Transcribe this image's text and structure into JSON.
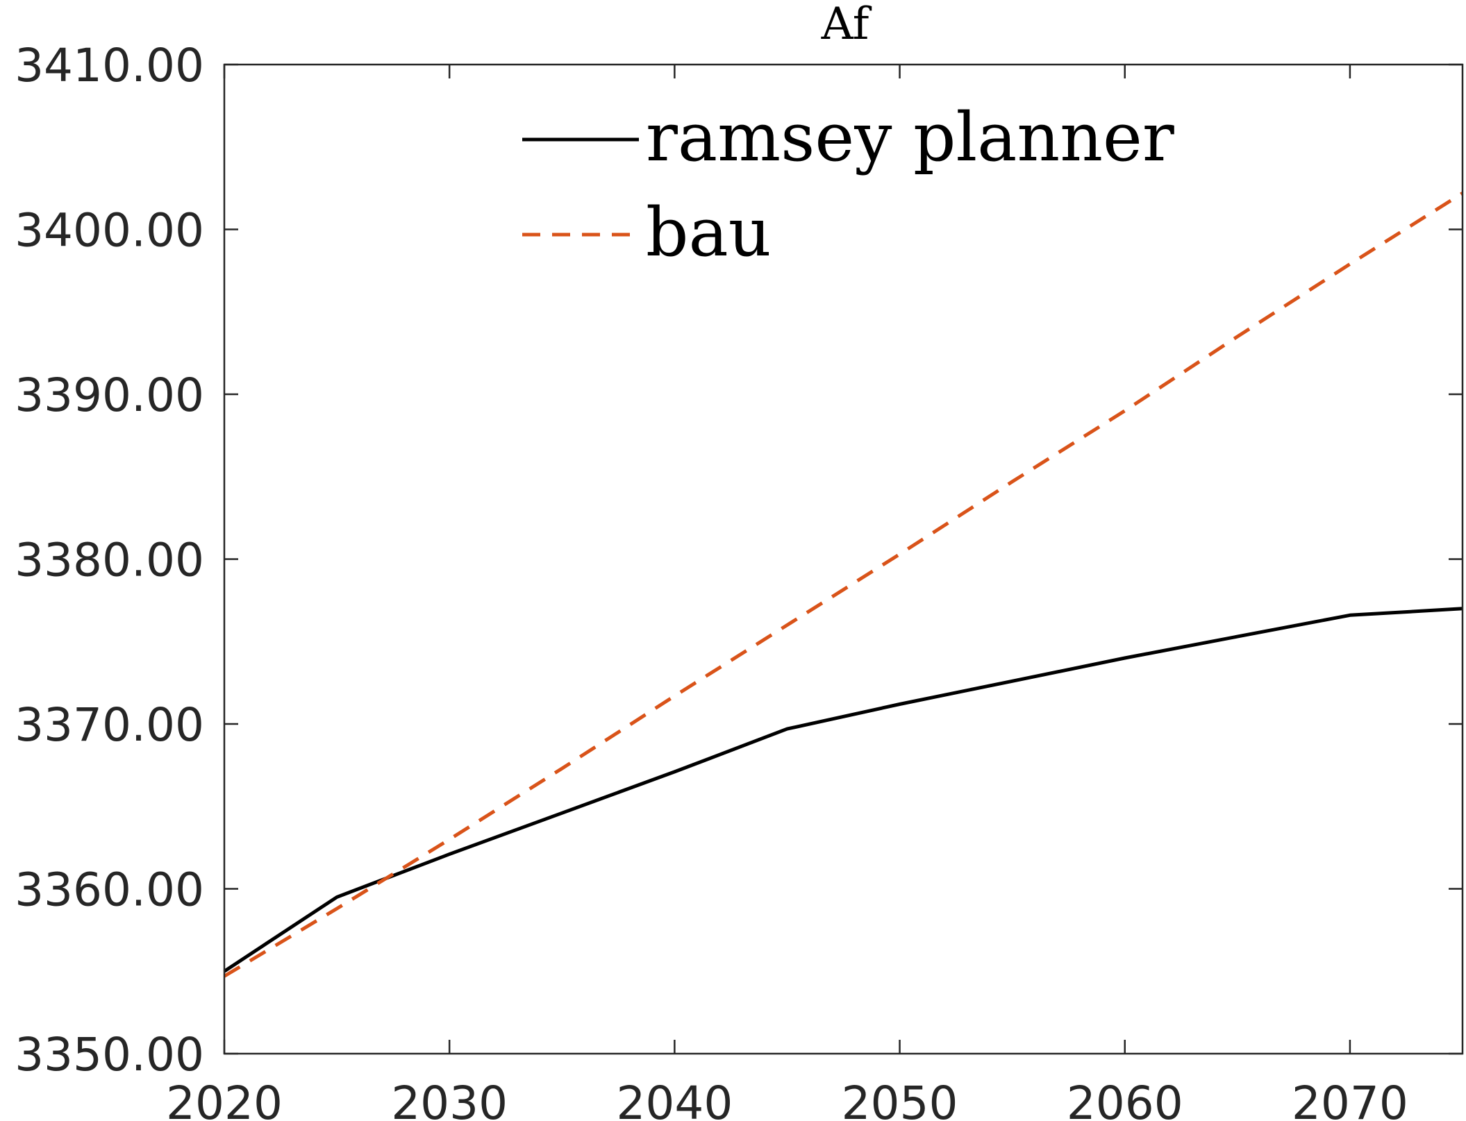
{
  "chart_data": {
    "type": "line",
    "title": "Af",
    "xlabel": "",
    "ylabel": "",
    "xlim": [
      2020,
      2075
    ],
    "ylim": [
      3350,
      3410
    ],
    "xticks": [
      2020,
      2030,
      2040,
      2050,
      2060,
      2070
    ],
    "xtick_labels": [
      "2020",
      "2030",
      "2040",
      "2050",
      "2060",
      "2070"
    ],
    "yticks": [
      3350,
      3360,
      3370,
      3380,
      3390,
      3400,
      3410
    ],
    "ytick_labels": [
      "3350.00",
      "3360.00",
      "3370.00",
      "3380.00",
      "3390.00",
      "3400.00",
      "3410.00"
    ],
    "grid": false,
    "legend_position": "top-center",
    "series": [
      {
        "name": "ramsey planner",
        "style": "solid",
        "color": "#000000",
        "x": [
          2020,
          2025,
          2030,
          2035,
          2040,
          2045,
          2050,
          2055,
          2060,
          2065,
          2070,
          2075
        ],
        "y": [
          3355.0,
          3359.5,
          3362.1,
          3364.6,
          3367.1,
          3369.7,
          3371.2,
          3372.6,
          3374.0,
          3375.3,
          3376.6,
          3377.0
        ]
      },
      {
        "name": "bau",
        "style": "dashed",
        "color": "#D95319",
        "x": [
          2020,
          2025,
          2030,
          2035,
          2040,
          2045,
          2050,
          2055,
          2060,
          2065,
          2070,
          2075
        ],
        "y": [
          3354.7,
          3358.8,
          3363.0,
          3367.3,
          3371.7,
          3376.0,
          3380.3,
          3384.7,
          3389.0,
          3393.5,
          3397.9,
          3402.2
        ]
      }
    ]
  }
}
